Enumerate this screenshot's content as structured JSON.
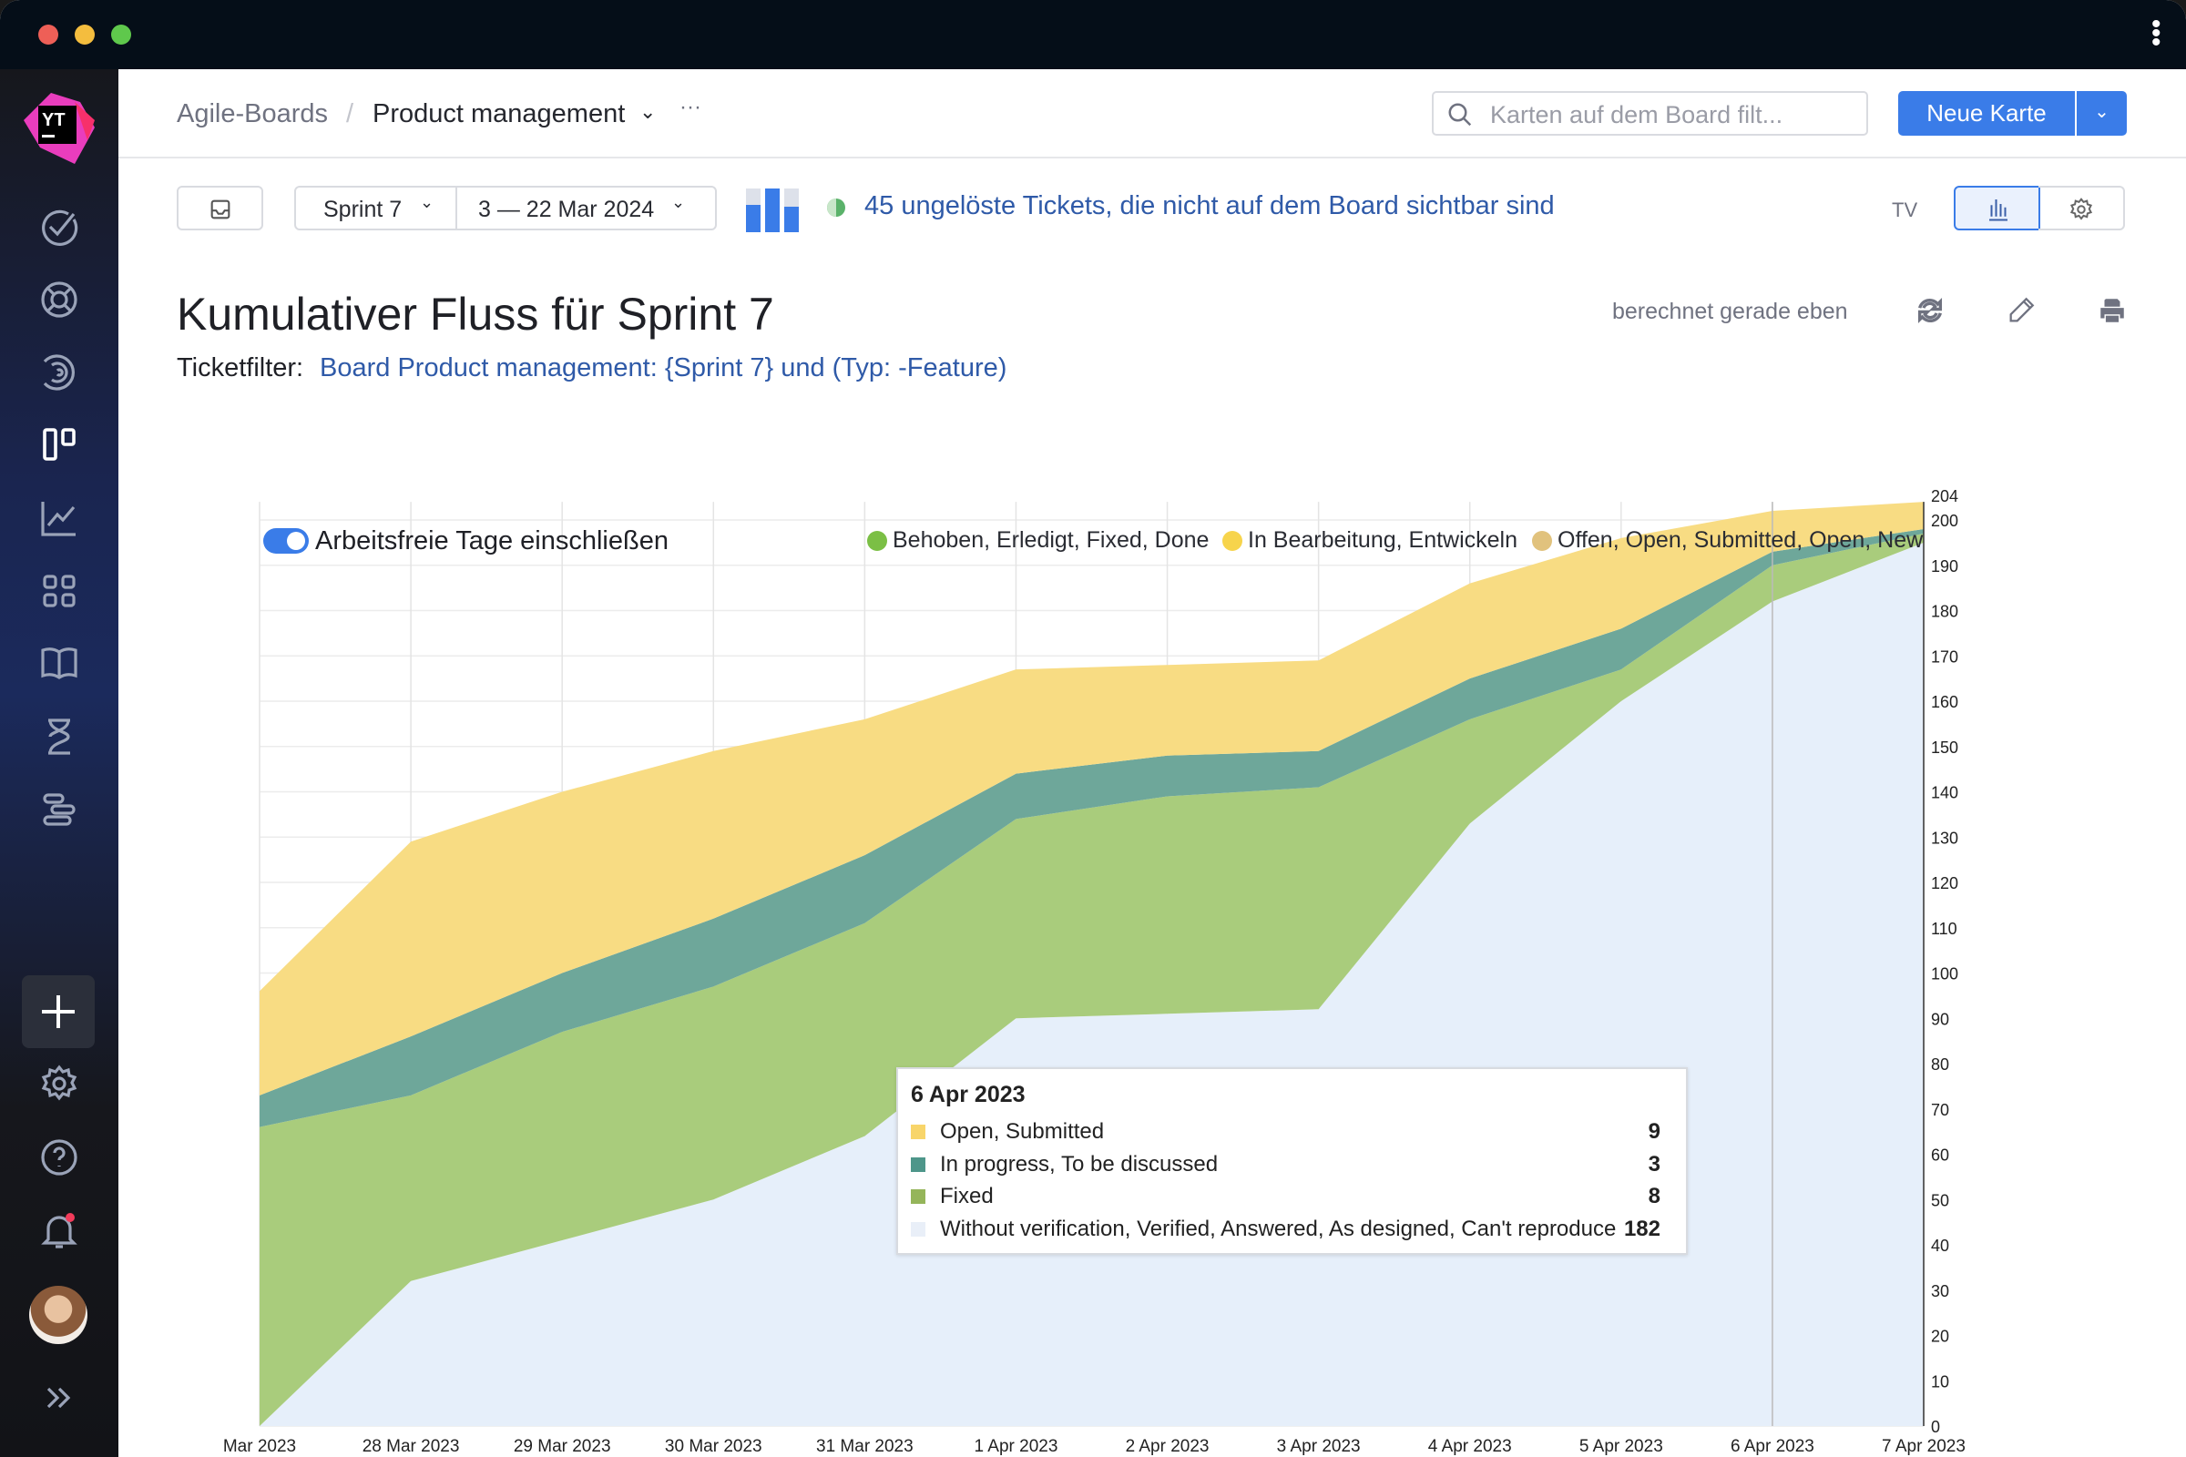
{
  "window": {
    "menu_icon": "kebab-vertical-icon"
  },
  "sidebar": {
    "logo": "YT",
    "items": [
      {
        "icon": "check-circle-icon"
      },
      {
        "icon": "lifebuoy-icon"
      },
      {
        "icon": "spiral-icon"
      },
      {
        "icon": "agile-board-icon"
      },
      {
        "icon": "reports-chart-icon"
      },
      {
        "icon": "dashboards-grid-icon"
      },
      {
        "icon": "knowledge-base-book-icon"
      },
      {
        "icon": "hourglass-icon"
      },
      {
        "icon": "gantt-icon"
      }
    ],
    "bottom": [
      {
        "icon": "plus-icon"
      },
      {
        "icon": "gear-icon"
      },
      {
        "icon": "help-icon"
      },
      {
        "icon": "bell-icon"
      },
      {
        "icon": "avatar"
      },
      {
        "icon": "expand-chevrons-icon"
      }
    ]
  },
  "header": {
    "breadcrumb_root": "Agile-Boards",
    "breadcrumb_sep": "/",
    "board": "Product management",
    "more": "···",
    "search_placeholder": "Karten auf dem Board filt...",
    "new_card": "Neue Karte"
  },
  "toolbar": {
    "sprint": "Sprint 7",
    "dates": "3 — 22 Mar 2024",
    "unresolved_link": "45 ungelöste Tickets, die nicht auf dem Board sichtbar sind",
    "tv": "TV"
  },
  "report": {
    "title": "Kumulativer Fluss für Sprint 7",
    "filter_label": "Ticketfilter:",
    "filter_query": "Board Product management: {Sprint 7} und (Typ: -Feature)",
    "calculated": "berechnet gerade eben",
    "include_nonworking": "Arbeitsfreie Tage einschließen",
    "include_nonworking_on": true
  },
  "colors": {
    "accent": "#3a7ce8",
    "done": "#e6effa",
    "fixed": "#a9cc7c",
    "in_progress": "#6ea79a",
    "open": "#f8dc83"
  },
  "chart_data": {
    "type": "area",
    "stacked": true,
    "legend": [
      {
        "label": "Behoben, Erledigt, Fixed, Done",
        "color": "#7bbf45"
      },
      {
        "label": "In Bearbeitung, Entwickeln",
        "color": "#f7d44c"
      },
      {
        "label": "Offen, Open, Submitted, Open, New",
        "color": "#e1c27d"
      }
    ],
    "x": [
      "Mar 2023",
      "28 Mar 2023",
      "29 Mar 2023",
      "30 Mar 2023",
      "31 Mar 2023",
      "1 Apr 2023",
      "2 Apr 2023",
      "3 Apr 2023",
      "4 Apr 2023",
      "5 Apr 2023",
      "6 Apr 2023",
      "7 Apr 2023"
    ],
    "series": [
      {
        "name": "Without verification, Verified, Answered, As designed, Can't reproduce",
        "color": "#e6effa",
        "values": [
          0,
          32,
          41,
          50,
          64,
          90,
          91,
          92,
          133,
          160,
          182,
          195
        ]
      },
      {
        "name": "Fixed",
        "color": "#a9cc7c",
        "values": [
          66,
          41,
          46,
          47,
          47,
          44,
          48,
          49,
          23,
          7,
          8,
          2
        ]
      },
      {
        "name": "In progress, To be discussed",
        "color": "#6ea79a",
        "values": [
          7,
          13,
          13,
          15,
          15,
          10,
          9,
          8,
          9,
          9,
          3,
          1
        ]
      },
      {
        "name": "Open, Submitted",
        "color": "#f8dc83",
        "values": [
          23,
          43,
          40,
          37,
          30,
          23,
          20,
          20,
          21,
          20,
          9,
          6
        ]
      }
    ],
    "yticks": [
      0,
      10,
      20,
      30,
      40,
      50,
      60,
      70,
      80,
      90,
      100,
      110,
      120,
      130,
      140,
      150,
      160,
      170,
      180,
      190,
      200,
      204
    ],
    "ylim": [
      0,
      204
    ],
    "y_axis_side": "right",
    "grid": true,
    "tooltip": {
      "date": "6 Apr 2023",
      "rows": [
        {
          "label": "Open, Submitted",
          "value": "9",
          "color": "#f8d56a"
        },
        {
          "label": "In progress, To be discussed",
          "value": "3",
          "color": "#4e968a"
        },
        {
          "label": "Fixed",
          "value": "8",
          "color": "#95b55a"
        },
        {
          "label": "Without verification, Verified, Answered, As designed, Can't reproduce",
          "value": "182",
          "color": "#e9eff8"
        }
      ]
    }
  }
}
